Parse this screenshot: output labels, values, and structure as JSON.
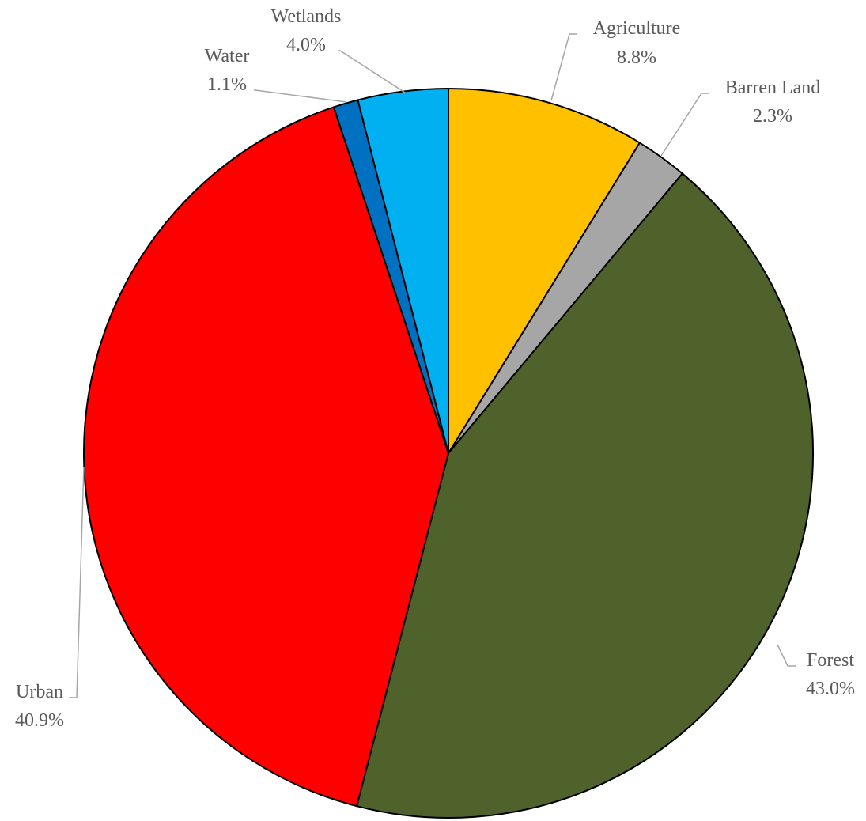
{
  "chart_data": {
    "type": "pie",
    "title": "",
    "start": "12 o'clock",
    "direction": "clockwise",
    "legend": "none",
    "labels_style": "outside with leader lines",
    "slices": [
      {
        "label": "Agriculture",
        "value": 8.8,
        "pct_label": "8.8%",
        "color": "#ffc000"
      },
      {
        "label": "Barren Land",
        "value": 2.3,
        "pct_label": "2.3%",
        "color": "#a6a6a6"
      },
      {
        "label": "Forest",
        "value": 43.0,
        "pct_label": "43.0%",
        "color": "#4f622c"
      },
      {
        "label": "Urban",
        "value": 40.9,
        "pct_label": "40.9%",
        "color": "#ff0000"
      },
      {
        "label": "Water",
        "value": 1.1,
        "pct_label": "1.1%",
        "color": "#0070c0"
      },
      {
        "label": "Wetlands",
        "value": 4.0,
        "pct_label": "4.0%",
        "color": "#00b0f0"
      }
    ]
  }
}
